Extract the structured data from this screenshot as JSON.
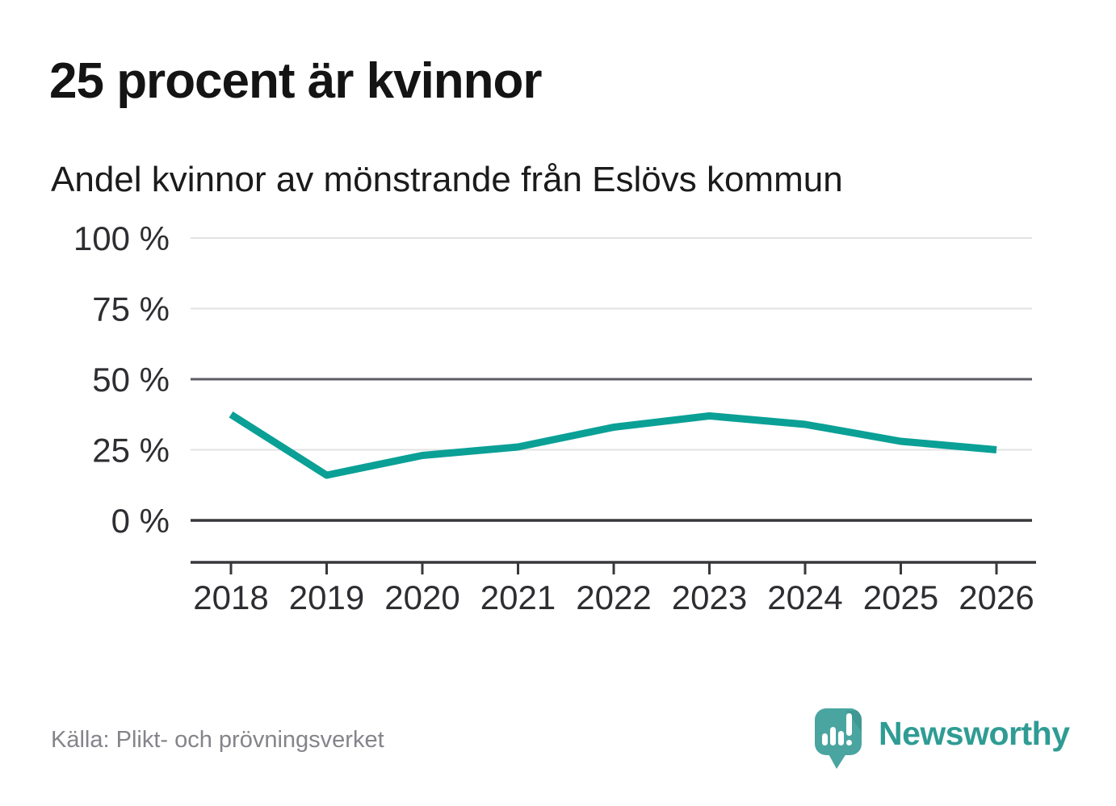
{
  "header": {
    "title": "25 procent är kvinnor",
    "subtitle": "Andel kvinnor av mönstrande från Eslövs kommun"
  },
  "chart_data": {
    "type": "line",
    "title": "25 procent är kvinnor",
    "subtitle": "Andel kvinnor av mönstrande från Eslövs kommun",
    "categories": [
      "2018",
      "2019",
      "2020",
      "2021",
      "2022",
      "2023",
      "2024",
      "2025",
      "2026"
    ],
    "values": [
      37.5,
      16,
      23,
      26,
      33,
      37,
      34,
      28,
      25
    ],
    "series_name": "Andel kvinnor av mönstrande",
    "unit": "%",
    "ylim": [
      0,
      100
    ],
    "y_ticks": [
      100,
      75,
      50,
      25,
      0
    ],
    "y_tick_labels": [
      "100 %",
      "75 %",
      "50 %",
      "25 %",
      "0 %"
    ],
    "grid": true,
    "legend": "none",
    "line_color": "#0aa096"
  },
  "footer": {
    "source": "Källa: Plikt- och prövningsverket",
    "brand": "Newsworthy"
  },
  "colors": {
    "accent_line": "#0aa096",
    "brand_teal": "#2f9c94",
    "logo_bubble": "#4aa5a0",
    "logo_fold": "#3e948f",
    "grid_light": "#e2e2e2",
    "grid_mid": "#5c5c64",
    "axis_dark": "#38383c",
    "text_dark": "#2e2e32",
    "text_muted": "#84848a"
  }
}
